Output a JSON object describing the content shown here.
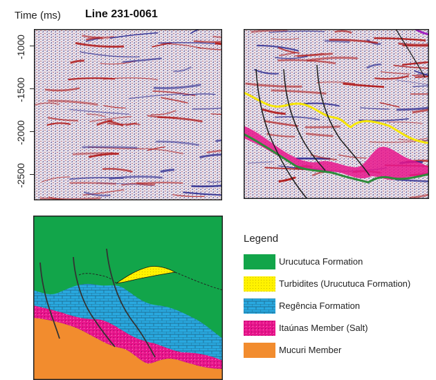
{
  "figure": {
    "y_axis_label": "Time (ms)",
    "title": "Line 231-0061",
    "y_ticks": [
      "-1000",
      "-1500",
      "-2000",
      "-2500"
    ]
  },
  "legend": {
    "title": "Legend",
    "items": [
      {
        "label": "Urucutuca Formation",
        "color": "#12a54a",
        "pattern": "solid"
      },
      {
        "label": "Turbidites (Urucutuca Formation)",
        "color": "#fff200",
        "pattern": "dotted"
      },
      {
        "label": "Regência Formation",
        "color": "#29a9e0",
        "pattern": "brick"
      },
      {
        "label": "Itaúnas Member (Salt)",
        "color": "#e8158c",
        "pattern": "speckled"
      },
      {
        "label": "Mucuri Member",
        "color": "#f28c2e",
        "pattern": "solid"
      }
    ]
  },
  "colors": {
    "horizon_yellow": "#f5e600",
    "horizon_green": "#2e8b3a",
    "salt_magenta": "#e8158c",
    "fault_line": "#222222",
    "seismic_red": "#b01818",
    "seismic_blue": "#2a2a90"
  }
}
